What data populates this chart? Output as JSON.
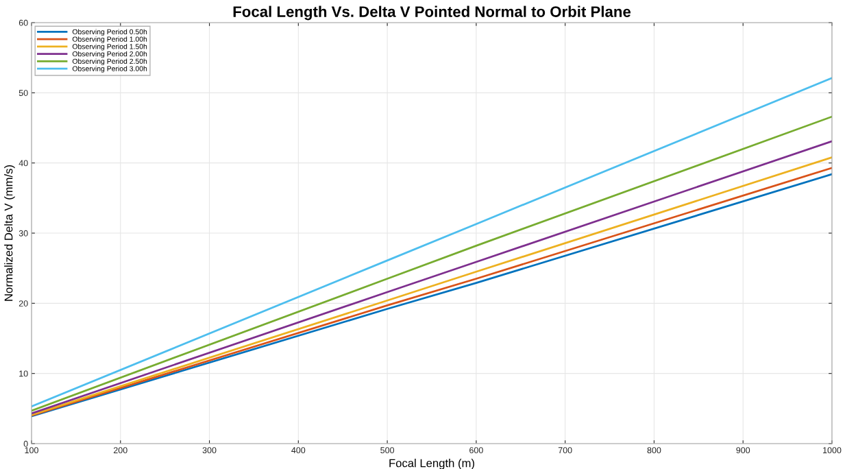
{
  "chart_data": {
    "type": "line",
    "title": "Focal Length Vs. Delta V Pointed Normal to Orbit Plane",
    "xlabel": "Focal Length (m)",
    "ylabel": "Normalized Delta V (mm/s)",
    "x": [
      100,
      500,
      600,
      1000
    ],
    "series": [
      {
        "name": "Observing Period 0.50h",
        "color": "#0072bd",
        "values": [
          3.9,
          19.2,
          22.9,
          38.4
        ]
      },
      {
        "name": "Observing Period 1.00h",
        "color": "#d95319",
        "values": [
          4.0,
          19.7,
          23.5,
          39.3
        ]
      },
      {
        "name": "Observing Period 1.50h",
        "color": "#edb120",
        "values": [
          4.1,
          20.4,
          24.5,
          40.8
        ]
      },
      {
        "name": "Observing Period 2.00h",
        "color": "#7e2f8e",
        "values": [
          4.3,
          21.6,
          25.9,
          43.1
        ]
      },
      {
        "name": "Observing Period 2.50h",
        "color": "#77ac30",
        "values": [
          4.7,
          23.5,
          28.2,
          46.6
        ]
      },
      {
        "name": "Observing Period 3.00h",
        "color": "#4dbeee",
        "values": [
          5.3,
          26.1,
          31.3,
          52.1
        ]
      }
    ],
    "xlim": [
      100,
      1000
    ],
    "ylim": [
      0,
      60
    ],
    "xticks": [
      100,
      200,
      300,
      400,
      500,
      600,
      700,
      800,
      900,
      1000
    ],
    "yticks": [
      0,
      10,
      20,
      30,
      40,
      50,
      60
    ],
    "grid": true,
    "legend": "top left",
    "marker": "none",
    "line_style": "solid"
  }
}
